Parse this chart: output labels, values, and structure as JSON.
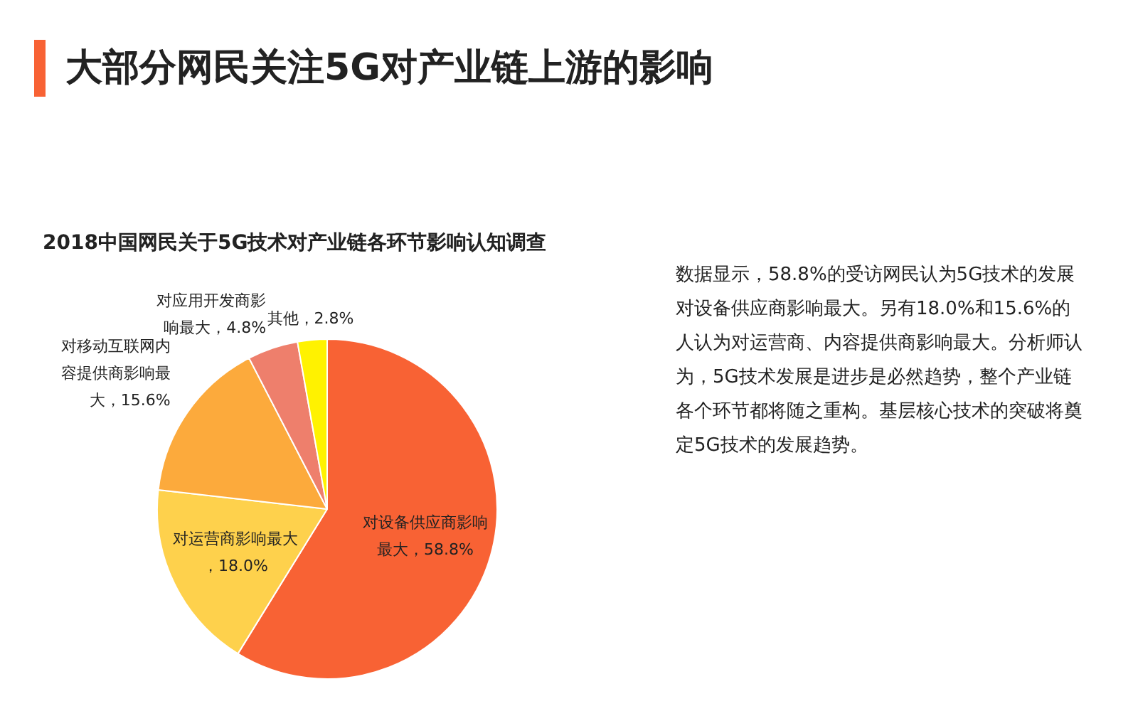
{
  "chart_data": {
    "type": "pie",
    "title": "大部分网民关注5G对产业链上游的影响",
    "subtitle": "2018中国网民关于5G技术对产业链各环节影响认知调查",
    "categories": [
      "对设备供应商影响最大",
      "对运营商影响最大",
      "对移动互联网内容提供商影响最大",
      "对应用开发商影响最大",
      "其他"
    ],
    "values": [
      58.8,
      18.0,
      15.6,
      4.8,
      2.8
    ],
    "value_labels": [
      "，58.8%",
      "，18.0%",
      "，15.6%",
      "，4.8%",
      "，2.8%"
    ],
    "colors": [
      "#f86234",
      "#fed14c",
      "#fcaa3c",
      "#ee7f6c",
      "#fff200"
    ],
    "legend": false,
    "annotations": [
      "数据显示，58.8%的受访网民认为5G技术的发展对设备供应商影响最大。另有18.0%和15.6%的人认为对运营商、内容提供商影响最大。分析师认为，5G技术发展是进步是必然趋势，整个产业链各个环节都将随之重构。基层核心技术的突破将奠定5G技术的发展趋势。"
    ]
  }
}
